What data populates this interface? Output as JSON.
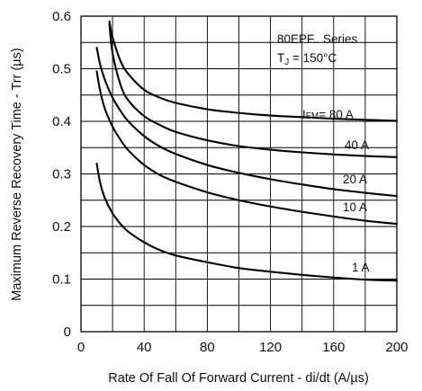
{
  "chart_data": {
    "type": "line",
    "title": "",
    "xlabel": "Rate Of Fall Of Forward Current - di/dt (A/µs)",
    "ylabel": "Maximum Reverse Recovery Time - Trr (µs)",
    "xlim": [
      0,
      200
    ],
    "ylim": [
      0,
      0.6
    ],
    "x_ticks": [
      "0",
      "40",
      "80",
      "120",
      "160",
      "200"
    ],
    "y_ticks": [
      "0",
      "0.1",
      "0.2",
      "0.3",
      "0.4",
      "0.5",
      "0.6"
    ],
    "x_grid_step": 20,
    "y_grid_step": 0.05,
    "grid": true,
    "annotation": {
      "series_text": "80EPF.. Series",
      "tj_prefix": "T",
      "tj_sub": "J",
      "tj_value": " = 150°C"
    },
    "series": [
      {
        "name": "IFM = 80 A",
        "label_prefix": "I",
        "label_sub": "FM",
        "label_value": "= 80 A",
        "x": [
          18,
          20,
          25,
          30,
          40,
          50,
          60,
          80,
          100,
          120,
          140,
          160,
          180,
          200
        ],
        "y": [
          0.59,
          0.56,
          0.515,
          0.49,
          0.46,
          0.445,
          0.435,
          0.423,
          0.416,
          0.411,
          0.408,
          0.405,
          0.403,
          0.401
        ]
      },
      {
        "name": "40 A",
        "label_prefix": "40 A",
        "label_sub": "",
        "label_value": "",
        "x": [
          18,
          20,
          25,
          30,
          40,
          50,
          60,
          80,
          100,
          120,
          140,
          160,
          180,
          200
        ],
        "y": [
          0.585,
          0.53,
          0.47,
          0.44,
          0.41,
          0.393,
          0.38,
          0.364,
          0.353,
          0.346,
          0.341,
          0.337,
          0.334,
          0.332
        ]
      },
      {
        "name": "20 A",
        "label_prefix": "20 A",
        "label_sub": "",
        "label_value": "",
        "x": [
          10,
          12,
          15,
          20,
          25,
          30,
          40,
          50,
          60,
          80,
          100,
          120,
          140,
          160,
          180,
          200
        ],
        "y": [
          0.54,
          0.51,
          0.48,
          0.445,
          0.42,
          0.4,
          0.372,
          0.352,
          0.338,
          0.317,
          0.302,
          0.29,
          0.28,
          0.271,
          0.264,
          0.258
        ]
      },
      {
        "name": "10 A",
        "label_prefix": "10 A",
        "label_sub": "",
        "label_value": "",
        "x": [
          10,
          12,
          15,
          20,
          25,
          30,
          40,
          50,
          60,
          80,
          100,
          120,
          140,
          160,
          180,
          200
        ],
        "y": [
          0.495,
          0.46,
          0.425,
          0.39,
          0.365,
          0.345,
          0.317,
          0.298,
          0.285,
          0.265,
          0.25,
          0.238,
          0.228,
          0.219,
          0.211,
          0.205
        ]
      },
      {
        "name": "1 A",
        "label_prefix": "1 A",
        "label_sub": "",
        "label_value": "",
        "x": [
          10,
          12,
          15,
          20,
          25,
          30,
          40,
          50,
          60,
          80,
          100,
          120,
          140,
          160,
          180,
          200
        ],
        "y": [
          0.32,
          0.285,
          0.255,
          0.225,
          0.205,
          0.19,
          0.17,
          0.155,
          0.145,
          0.132,
          0.121,
          0.114,
          0.108,
          0.103,
          0.099,
          0.097
        ]
      }
    ]
  }
}
